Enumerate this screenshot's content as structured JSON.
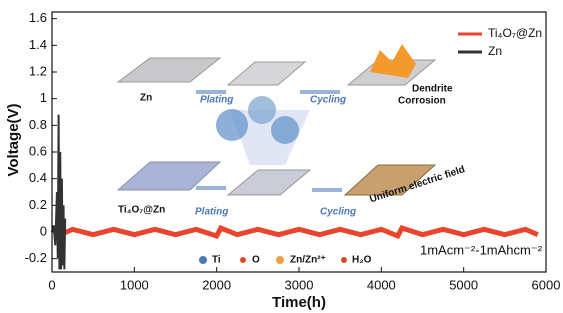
{
  "chart_data": {
    "type": "line",
    "x_label": "Time(h)",
    "y_label": "Voltage(V)",
    "xlim": [
      0,
      6000
    ],
    "xticks": [
      0,
      1000,
      2000,
      3000,
      4000,
      5000,
      6000
    ],
    "ylim": [
      -0.3,
      1.65
    ],
    "yticks": [
      -0.2,
      0.0,
      0.2,
      0.4,
      0.6,
      0.8,
      1.0,
      1.2,
      1.4,
      1.6
    ],
    "legend": "upper right",
    "annotation": "1mAcm⁻²-1mAhcm⁻²",
    "series": [
      {
        "name": "Ti₄O₇@Zn",
        "color": "#e8452c",
        "x": [
          0,
          100,
          250,
          500,
          750,
          1000,
          1250,
          1500,
          1750,
          2000,
          2050,
          2250,
          2500,
          2750,
          3000,
          3250,
          3500,
          3750,
          4000,
          4200,
          4250,
          4500,
          4750,
          5000,
          5250,
          5500,
          5750,
          5900
        ],
        "values": [
          0.02,
          -0.02,
          0.02,
          -0.02,
          0.02,
          -0.02,
          0.02,
          -0.02,
          0.02,
          -0.03,
          0.03,
          -0.02,
          0.02,
          -0.02,
          0.02,
          -0.02,
          0.02,
          -0.02,
          0.02,
          -0.03,
          0.03,
          -0.02,
          0.02,
          -0.02,
          0.02,
          -0.02,
          0.02,
          -0.02
        ]
      },
      {
        "name": "Zn",
        "color": "#333333",
        "x": [
          0,
          20,
          40,
          60,
          70,
          80,
          90,
          100,
          110,
          120,
          130,
          140,
          150,
          160
        ],
        "values": [
          0,
          0.05,
          -0.1,
          0.3,
          -0.2,
          0.88,
          -0.28,
          0.6,
          -0.28,
          0.4,
          -0.25,
          0.2,
          -0.28,
          0.1
        ]
      }
    ]
  },
  "inset": {
    "zn": "Zn",
    "plating_1": "Plating",
    "cycling_1": "Cycling",
    "dendrite": "Dendrite",
    "corrosion": "Corrosion",
    "ti4o7_zn": "Ti₄O₇@Zn",
    "plating_2": "Plating",
    "cycling_2": "Cycling",
    "uniform": "Uniform electric field",
    "legend": [
      "Ti",
      "O",
      "Zn/Zn²⁺",
      "H₂O"
    ]
  }
}
